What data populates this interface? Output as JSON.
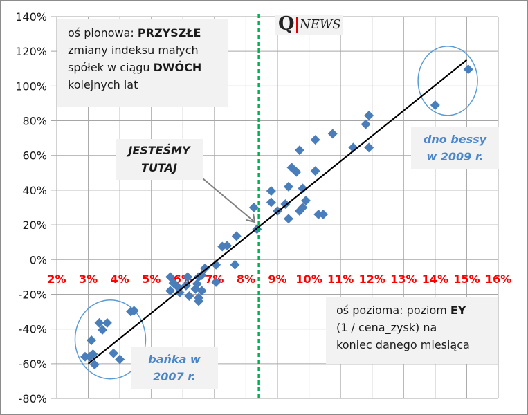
{
  "chart_data": {
    "type": "scatter",
    "title": "",
    "xlim": [
      2,
      16
    ],
    "ylim": [
      -80,
      140
    ],
    "x_ticks": [
      "2%",
      "3%",
      "4%",
      "5%",
      "6%",
      "7%",
      "8%",
      "9%",
      "10%",
      "11%",
      "12%",
      "13%",
      "14%",
      "15%",
      "16%"
    ],
    "y_ticks": [
      "140%",
      "120%",
      "100%",
      "80%",
      "60%",
      "40%",
      "20%",
      "0%",
      "-20%",
      "-40%",
      "-60%",
      "-80%"
    ],
    "grid": true,
    "marker_color": "#4a7ebb",
    "x_tick_color": "#ff0000",
    "points": [
      [
        14.0,
        89
      ],
      [
        15.05,
        109.6
      ],
      [
        11.9,
        83
      ],
      [
        11.8,
        78
      ],
      [
        11.9,
        64.5
      ],
      [
        11.4,
        64.5
      ],
      [
        10.75,
        72.5
      ],
      [
        10.2,
        69
      ],
      [
        9.7,
        63
      ],
      [
        10.2,
        51
      ],
      [
        9.45,
        53
      ],
      [
        9.6,
        50.5
      ],
      [
        9.8,
        41
      ],
      [
        9.35,
        42
      ],
      [
        8.8,
        39.5
      ],
      [
        8.8,
        33
      ],
      [
        9.25,
        32
      ],
      [
        9.0,
        28
      ],
      [
        9.35,
        23.5
      ],
      [
        9.7,
        28
      ],
      [
        9.8,
        30
      ],
      [
        9.9,
        34
      ],
      [
        10.3,
        26
      ],
      [
        10.45,
        26
      ],
      [
        8.25,
        30
      ],
      [
        8.35,
        17.5
      ],
      [
        7.7,
        13.5
      ],
      [
        7.25,
        7.5
      ],
      [
        7.4,
        8
      ],
      [
        7.65,
        -3
      ],
      [
        7.05,
        -3
      ],
      [
        7.05,
        -13
      ],
      [
        6.7,
        -5
      ],
      [
        5.6,
        -10
      ],
      [
        5.6,
        -18
      ],
      [
        5.7,
        -13.5
      ],
      [
        5.9,
        -19
      ],
      [
        6.1,
        -15
      ],
      [
        6.15,
        -10
      ],
      [
        6.2,
        -21
      ],
      [
        6.4,
        -17
      ],
      [
        6.45,
        -14
      ],
      [
        6.5,
        -22
      ],
      [
        6.6,
        -18
      ],
      [
        6.5,
        -10
      ],
      [
        6.6,
        -9
      ],
      [
        6.5,
        -24
      ],
      [
        5.85,
        -16
      ],
      [
        4.35,
        -30
      ],
      [
        4.45,
        -29.5
      ],
      [
        3.35,
        -36.5
      ],
      [
        3.6,
        -36.5
      ],
      [
        3.45,
        -40.5
      ],
      [
        3.1,
        -46.5
      ],
      [
        2.9,
        -56
      ],
      [
        3.15,
        -54.5
      ],
      [
        3.2,
        -60.5
      ],
      [
        3.8,
        -54
      ],
      [
        4.0,
        -57.5
      ],
      [
        3.05,
        -56
      ]
    ],
    "trendline": {
      "from": [
        3.0,
        -60
      ],
      "to": [
        15.0,
        115
      ],
      "color": "#000000"
    },
    "reference_line": {
      "x": 8.4,
      "color": "#00b050",
      "style": "dashed"
    },
    "highlight_circles": [
      {
        "center": [
          14.4,
          103
        ],
        "label": "dno bessy w 2009 r."
      },
      {
        "center": [
          3.7,
          -46
        ],
        "label": "bańka w 2007 r."
      }
    ]
  },
  "annotations": {
    "vertical_axis_note": {
      "p1": "oś pionowa: ",
      "b1": "PRZYSZŁE",
      "p2": "zmiany indeksu małych",
      "p3": "spółek w ciągu ",
      "b2": "DWÓCH",
      "p4": "kolejnych lat"
    },
    "horizontal_axis_note": {
      "p1": "oś pozioma: poziom ",
      "b1": "EY",
      "p2": "(1 / cena_zysk) na",
      "p3": "koniec danego miesiąca"
    },
    "callout": {
      "line1": "JESTEŚMY",
      "line2": "TUTAJ"
    },
    "bessy": {
      "line1": "dno bessy",
      "line2": "w 2009 r."
    },
    "banka": {
      "line1": "bańka w",
      "line2": "2007 r."
    }
  },
  "logo": {
    "text": "Q|NEWS"
  }
}
